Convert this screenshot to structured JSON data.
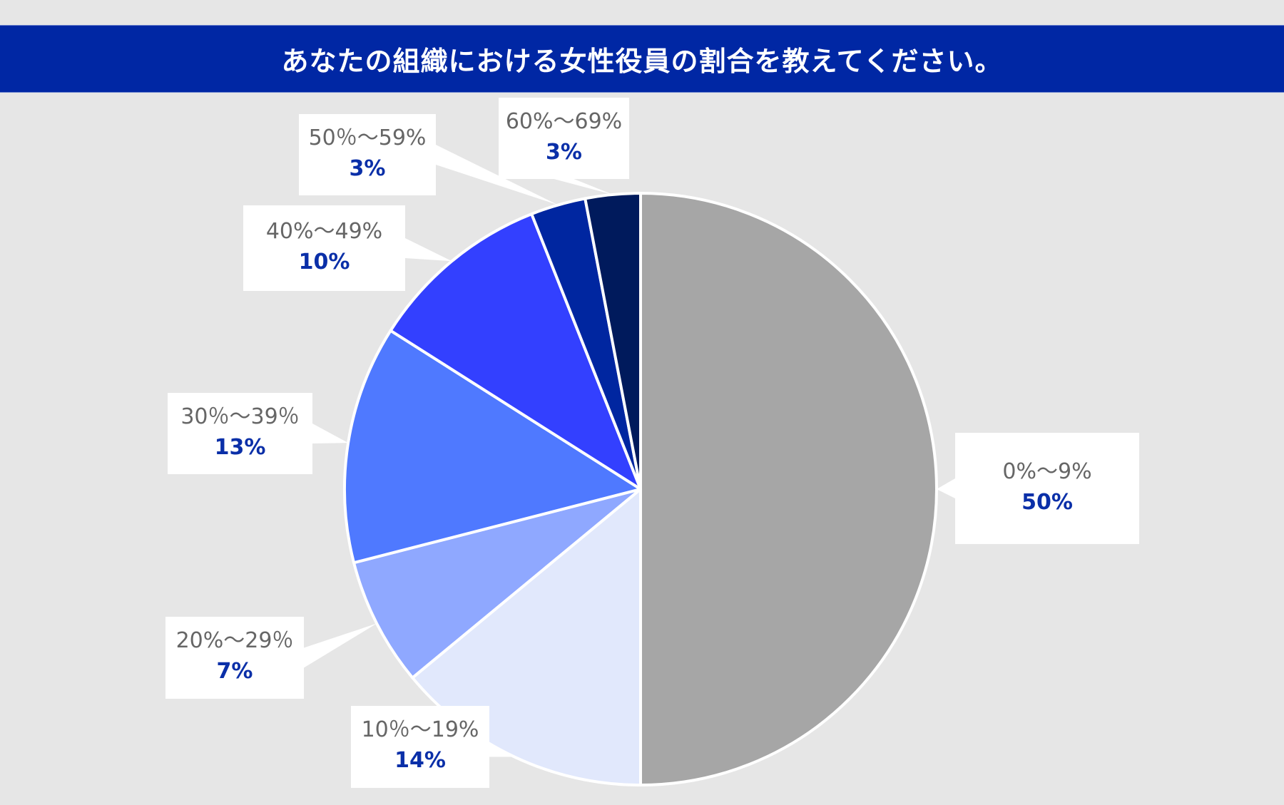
{
  "header": {
    "title": "あなたの組織における女性役員の割合を教えてください。"
  },
  "colors": {
    "background": "#e6e6e6",
    "title_bar": "#0027a4",
    "category_text": "#666666",
    "value_text": "#0a2fa8"
  },
  "chart_data": {
    "type": "pie",
    "title": "あなたの組織における女性役員の割合を教えてください。",
    "categories": [
      "0%〜9%",
      "10％〜19%",
      "20%〜29％",
      "30％〜39％",
      "40%〜49%",
      "50％〜59%",
      "60%〜69%"
    ],
    "values": [
      50,
      14,
      7,
      13,
      10,
      3,
      3
    ],
    "value_labels": [
      "50%",
      "14%",
      "7%",
      "13%",
      "10%",
      "3%",
      "3%"
    ],
    "slice_colors": [
      "#a6a6a6",
      "#e1e8fc",
      "#8fa8ff",
      "#4f79ff",
      "#3340ff",
      "#0026a0",
      "#001a5c"
    ],
    "start_angle": "12 o'clock",
    "direction": "clockwise",
    "legend": "none (data callout labels)"
  },
  "labels": [
    {
      "category": "0%〜9%",
      "value": "50%"
    },
    {
      "category": "10％〜19%",
      "value": "14%"
    },
    {
      "category": "20%〜29％",
      "value": "7%"
    },
    {
      "category": "30％〜39％",
      "value": "13%"
    },
    {
      "category": "40%〜49%",
      "value": "10%"
    },
    {
      "category": "50％〜59%",
      "value": "3%"
    },
    {
      "category": "60%〜69%",
      "value": "3%"
    }
  ]
}
